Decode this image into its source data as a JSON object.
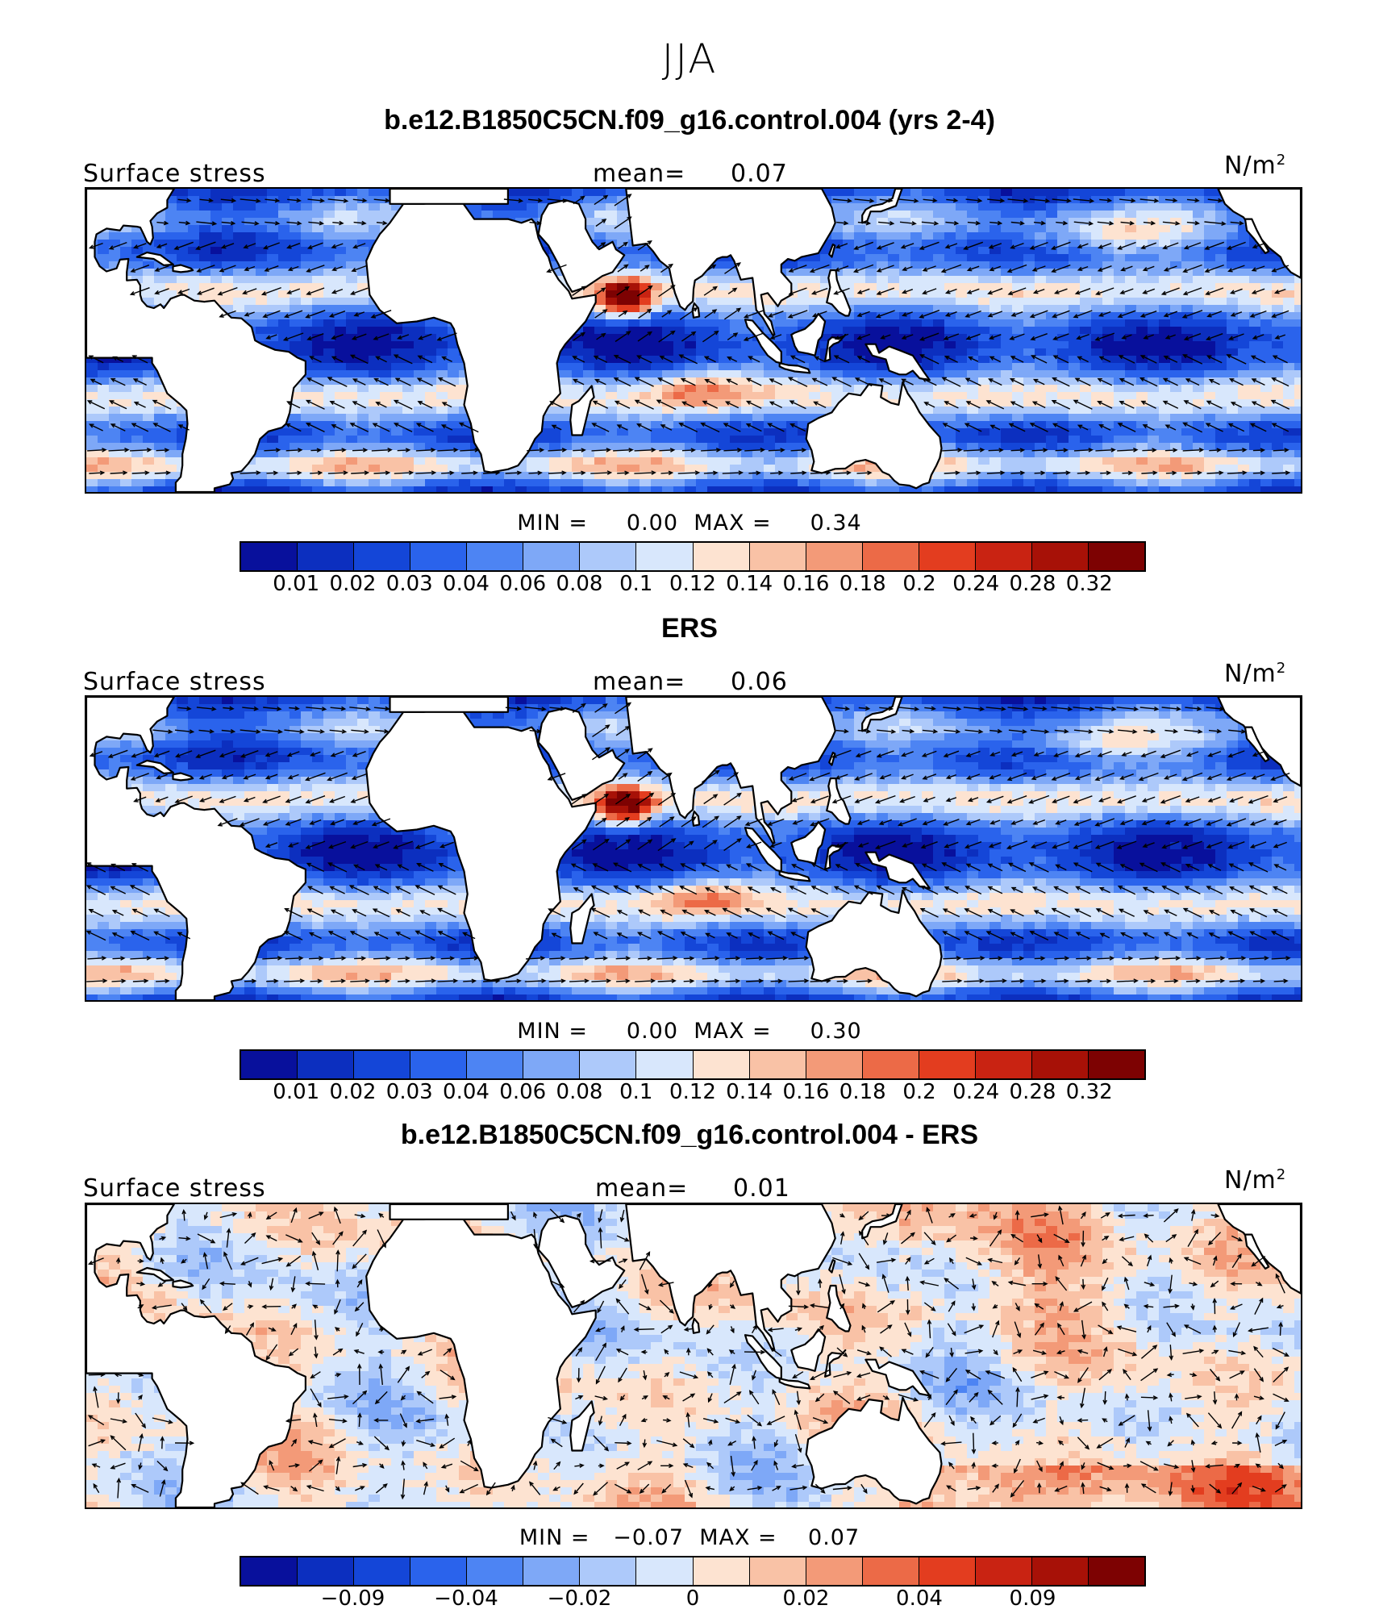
{
  "season": "JJA",
  "colors": [
    "#08109c",
    "#0c2fbf",
    "#1446d8",
    "#2a63ec",
    "#4d84f3",
    "#7ea8f7",
    "#adc9fa",
    "#d8e7fc",
    "#fde3d1",
    "#f9c2a6",
    "#f39a78",
    "#ec6a47",
    "#e33d1f",
    "#c92312",
    "#a71107",
    "#7d0202"
  ],
  "panels": [
    {
      "title": "b.e12.B1850C5CN.f09_g16.control.004 (yrs 2-4)",
      "variable": "Surface stress",
      "mean_label": "mean=",
      "mean_value": "0.07",
      "units": "N/m",
      "units_exp": "2",
      "min_label": "MIN =",
      "min_value": "0.00",
      "max_label": "MAX =",
      "max_value": "0.34",
      "ticks": [
        "0.01",
        "0.02",
        "0.03",
        "0.04",
        "0.06",
        "0.08",
        "0.1",
        "0.12",
        "0.14",
        "0.16",
        "0.18",
        "0.2",
        "0.24",
        "0.28",
        "0.32"
      ]
    },
    {
      "title": "ERS",
      "variable": "Surface stress",
      "mean_label": "mean=",
      "mean_value": "0.06",
      "units": "N/m",
      "units_exp": "2",
      "min_label": "MIN =",
      "min_value": "0.00",
      "max_label": "MAX =",
      "max_value": "0.30",
      "ticks": [
        "0.01",
        "0.02",
        "0.03",
        "0.04",
        "0.06",
        "0.08",
        "0.1",
        "0.12",
        "0.14",
        "0.16",
        "0.18",
        "0.2",
        "0.24",
        "0.28",
        "0.32"
      ]
    },
    {
      "title": "b.e12.B1850C5CN.f09_g16.control.004 - ERS",
      "variable": "Surface stress",
      "mean_label": "mean=",
      "mean_value": "0.01",
      "units": "N/m",
      "units_exp": "2",
      "min_label": "MIN =",
      "min_value": "−0.07",
      "max_label": "MAX =",
      "max_value": "0.07",
      "ticks": [
        "−0.09",
        "−0.04",
        "−0.02",
        "0",
        "0.02",
        "0.04",
        "0.09"
      ]
    }
  ]
}
